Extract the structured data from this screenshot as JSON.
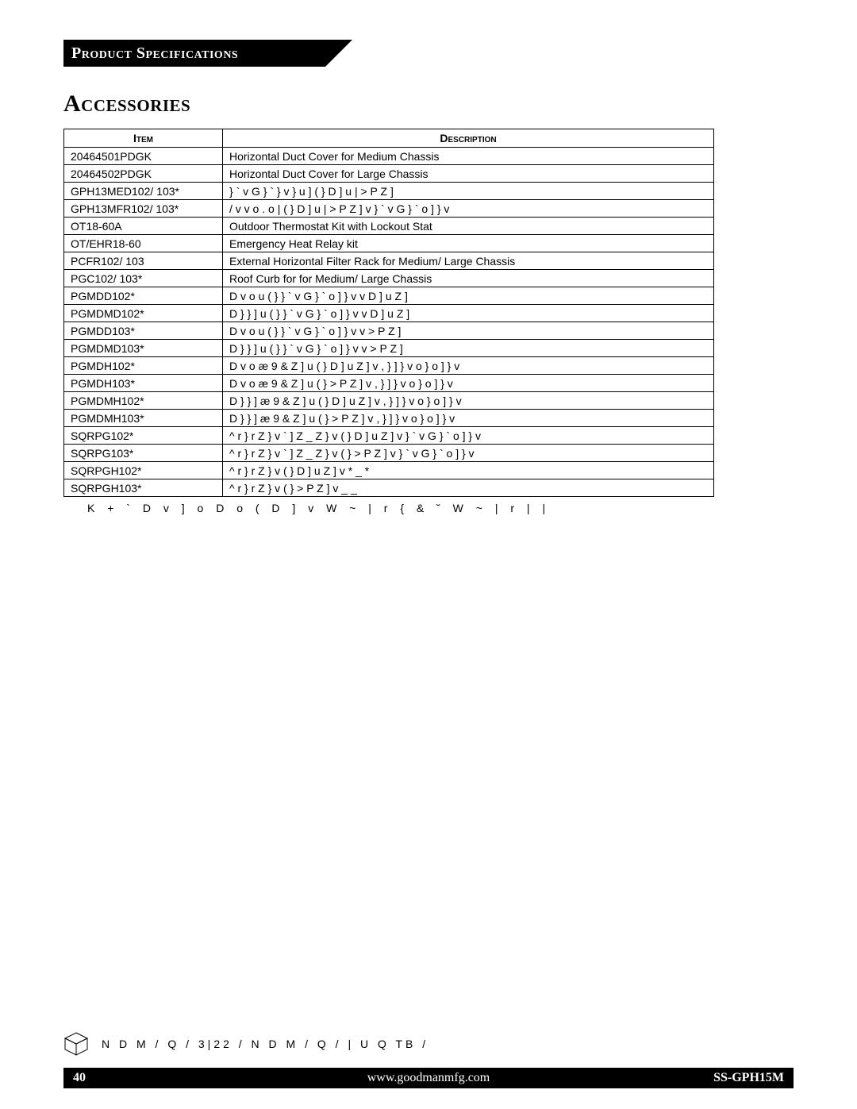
{
  "header": {
    "ribbon_label": "Product Specifications",
    "section_heading": "Accessories"
  },
  "table": {
    "col_item": "Item",
    "col_desc": "Description",
    "rows": [
      {
        "item": "20464501PDGK",
        "desc": "Horizontal Duct Cover for Medium Chassis"
      },
      {
        "item": "20464502PDGK",
        "desc": "Horizontal Duct Cover for Large Chassis"
      },
      {
        "item": "GPH13MED102/ 103*",
        "desc": "  } ` v G } `   } v } u ]   ( }   D   ] u |  >   P   Z   ]"
      },
      {
        "item": "GPH13MFR102/ 103*",
        "desc": "/ v   v o . o   | ( }   D   ] u |  >   P   Z   ]   v   } ` v G } `   o ]   } v"
      },
      {
        "item": "OT18-60A",
        "desc": "Outdoor Thermostat Kit with Lockout Stat"
      },
      {
        "item": "OT/EHR18-60",
        "desc": "Emergency Heat Relay kit"
      },
      {
        "item": "PCFR102/ 103",
        "desc": "External Horizontal Filter Rack for Medium/ Large Chassis"
      },
      {
        "item": "PGC102/ 103*",
        "desc": "Roof Curb for for Medium/ Large Chassis"
      },
      {
        "item": "PGMDD102*",
        "desc": "D  v   o   u   ( }   } ` v G } `   o ]   } v  v  D   ] u  Z   ]"
      },
      {
        "item": "PGMDMD102*",
        "desc": "D }  }  ]   u   ( }   } ` v G } `   o ]   } v  v  D   ] u  Z   ]"
      },
      {
        "item": "PGMDD103*",
        "desc": "D  v   o   u   ( }   } ` v G } `   o ]   } v  v  >   P   Z   ]"
      },
      {
        "item": "PGMDMD103*",
        "desc": "D }  }  ]   u   ( }   } ` v G } `   o ]   } v  v  >   P   Z   ]"
      },
      {
        "item": "PGMDH102*",
        "desc": "D  v   o   æ 9  &   Z   ]   u   ( }   D   ] u  Z   ]   v  , }  ]  } v   o }   o ]   } v"
      },
      {
        "item": "PGMDH103*",
        "desc": "D  v   o   æ 9  &   Z   ]   u   ( }   >   P   Z   ]   v  , }  ]  } v   o }   o ]   } v"
      },
      {
        "item": "PGMDMH102*",
        "desc": "D }  }  ]   æ 9  &   Z   ]   u   ( }   D   ] u  Z   ]   v  , }  ]  } v   o }   o ]   } v"
      },
      {
        "item": "PGMDMH103*",
        "desc": "D }  }  ]   æ 9  &   Z   ]   u   ( }   >   P   Z   ]   v  , }  ]  } v   o }   o ]   } v"
      },
      {
        "item": "SQRPG102*",
        "desc": "^   r  } r Z }  v   `  ]  Z   _  Z }  v   ( }   D   ] u  Z   ]   v   } ` v G } `   o ]   } v"
      },
      {
        "item": "SQRPG103*",
        "desc": "^   r  } r Z }  v   `  ]  Z   _  Z }  v   ( }   >   P   Z   ]   v   } ` v G } `   o ]   } v"
      },
      {
        "item": "SQRPGH102*",
        "desc": "^   r  } r Z }  v   ( }   D   ] u  Z   ]   v   *  _   *"
      },
      {
        "item": "SQRPGH103*",
        "desc": "^   r  } r Z }  v   ( }   >   P   Z   ]   v   _   _"
      }
    ]
  },
  "footnote": "K +   `  D  v ] o  D   o  (  D  ] v W  ~   |  r   {  &  ˘ W  ~   |  r |  |",
  "footer_upper_text": "N   D   M / Q /   3|22   /   N   D   M / Q /  |   U   Q   TB /",
  "footer": {
    "page_number": "40",
    "center_text": "www.goodmanmfg.com",
    "right_text": "SS-GPH15M"
  },
  "style": {
    "page_bg": "#ffffff",
    "text_color": "#000000",
    "ribbon_bg": "#000000",
    "ribbon_fg": "#ffffff",
    "table_border": "#000000",
    "footer_bg": "#000000",
    "footer_fg": "#ffffff",
    "body_font": "Times New Roman",
    "table_font": "Arial"
  }
}
